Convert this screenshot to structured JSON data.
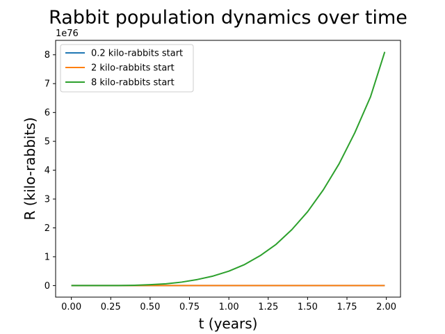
{
  "chart_data": {
    "type": "line",
    "title": "Rabbit population dynamics  over time",
    "xlabel": "t (years)",
    "ylabel": "R (kilo-rabbits)",
    "y_offset_text": "1e76",
    "xlim": [
      -0.1,
      2.09
    ],
    "ylim": [
      -0.4,
      8.5
    ],
    "x_ticks": [
      0.0,
      0.25,
      0.5,
      0.75,
      1.0,
      1.25,
      1.5,
      1.75,
      2.0
    ],
    "x_tick_labels": [
      "0.00",
      "0.25",
      "0.50",
      "0.75",
      "1.00",
      "1.25",
      "1.50",
      "1.75",
      "2.00"
    ],
    "y_ticks": [
      0,
      1,
      2,
      3,
      4,
      5,
      6,
      7,
      8
    ],
    "y_tick_labels": [
      "0",
      "1",
      "2",
      "3",
      "4",
      "5",
      "6",
      "7",
      "8"
    ],
    "grid": false,
    "legend_position": "top-left",
    "series": [
      {
        "name": "0.2 kilo-rabbits start",
        "color": "#1f77b4",
        "x": [
          0.0,
          0.25,
          0.5,
          0.75,
          1.0,
          1.25,
          1.5,
          1.75,
          1.99
        ],
        "y": [
          0,
          0,
          0,
          0,
          0,
          0,
          0,
          0,
          0
        ]
      },
      {
        "name": "2 kilo-rabbits start",
        "color": "#ff7f0e",
        "x": [
          0.0,
          0.25,
          0.5,
          0.75,
          1.0,
          1.25,
          1.5,
          1.75,
          1.99
        ],
        "y": [
          0,
          0,
          0,
          0,
          0,
          0,
          0,
          0,
          0
        ]
      },
      {
        "name": "8 kilo-rabbits start",
        "color": "#2ca02c",
        "x": [
          0.0,
          0.1,
          0.2,
          0.3,
          0.4,
          0.5,
          0.6,
          0.7,
          0.8,
          0.9,
          1.0,
          1.1,
          1.2,
          1.3,
          1.4,
          1.5,
          1.6,
          1.7,
          1.8,
          1.9,
          1.99
        ],
        "y": [
          0.0,
          0.0,
          0.0,
          0.0,
          0.01,
          0.03,
          0.06,
          0.12,
          0.21,
          0.33,
          0.5,
          0.73,
          1.04,
          1.43,
          1.94,
          2.56,
          3.32,
          4.22,
          5.3,
          6.55,
          8.1
        ]
      }
    ]
  }
}
